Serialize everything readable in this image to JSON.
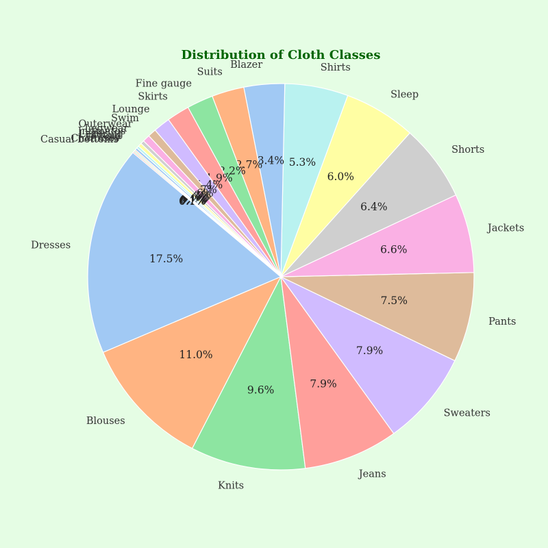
{
  "chart_data": {
    "type": "pie",
    "title": "Distribution of Cloth Classes",
    "start_angle_deg": 140,
    "direction": "counterclockwise",
    "slices": [
      {
        "label": "Dresses",
        "value": 17.5,
        "pct_label": "17.5%",
        "color": "#a1c9f4"
      },
      {
        "label": "Blouses",
        "value": 11.0,
        "pct_label": "11.0%",
        "color": "#ffb482"
      },
      {
        "label": "Knits",
        "value": 9.6,
        "pct_label": "9.6%",
        "color": "#8de5a1"
      },
      {
        "label": "Jeans",
        "value": 7.9,
        "pct_label": "7.9%",
        "color": "#ff9f9b"
      },
      {
        "label": "Sweaters",
        "value": 7.9,
        "pct_label": "7.9%",
        "color": "#d0bbff"
      },
      {
        "label": "Pants",
        "value": 7.5,
        "pct_label": "7.5%",
        "color": "#debb9b"
      },
      {
        "label": "Jackets",
        "value": 6.6,
        "pct_label": "6.6%",
        "color": "#fab0e4"
      },
      {
        "label": "Shorts",
        "value": 6.4,
        "pct_label": "6.4%",
        "color": "#cfcfcf"
      },
      {
        "label": "Sleep",
        "value": 6.0,
        "pct_label": "6.0%",
        "color": "#fffea3"
      },
      {
        "label": "Shirts",
        "value": 5.3,
        "pct_label": "5.3%",
        "color": "#b9f2f0"
      },
      {
        "label": "Blazer",
        "value": 3.4,
        "pct_label": "3.4%",
        "color": "#a1c9f4"
      },
      {
        "label": "Suits",
        "value": 2.7,
        "pct_label": "2.7%",
        "color": "#ffb482"
      },
      {
        "label": "Fine gauge",
        "value": 2.2,
        "pct_label": "2.2%",
        "color": "#8de5a1"
      },
      {
        "label": "Skirts",
        "value": 1.9,
        "pct_label": "1.9%",
        "color": "#ff9f9b"
      },
      {
        "label": "Lounge",
        "value": 1.4,
        "pct_label": "1.4%",
        "color": "#d0bbff"
      },
      {
        "label": "Swim",
        "value": 0.7,
        "pct_label": "0.7%",
        "color": "#debb9b"
      },
      {
        "label": "Outerwear",
        "value": 0.6,
        "pct_label": "0.6%",
        "color": "#fab0e4"
      },
      {
        "label": "Legwear",
        "value": 0.3,
        "pct_label": "0.3%",
        "color": "#cfcfcf"
      },
      {
        "label": "Intimates",
        "value": 0.3,
        "pct_label": "0.3%",
        "color": "#fffea3"
      },
      {
        "label": "Layering",
        "value": 0.2,
        "pct_label": "0.2%",
        "color": "#b9f2f0"
      },
      {
        "label": "Trend",
        "value": 0.2,
        "pct_label": "0.2%",
        "color": "#a1c9f4"
      },
      {
        "label": "Dressy",
        "value": 0.1,
        "pct_label": "0.1%",
        "color": "#ffb482"
      },
      {
        "label": "Chemises",
        "value": 0.1,
        "pct_label": "0.1%",
        "color": "#8de5a1"
      },
      {
        "label": "Casual bottoms",
        "value": 0.1,
        "pct_label": "0.1%",
        "color": "#ff9f9b"
      }
    ]
  }
}
